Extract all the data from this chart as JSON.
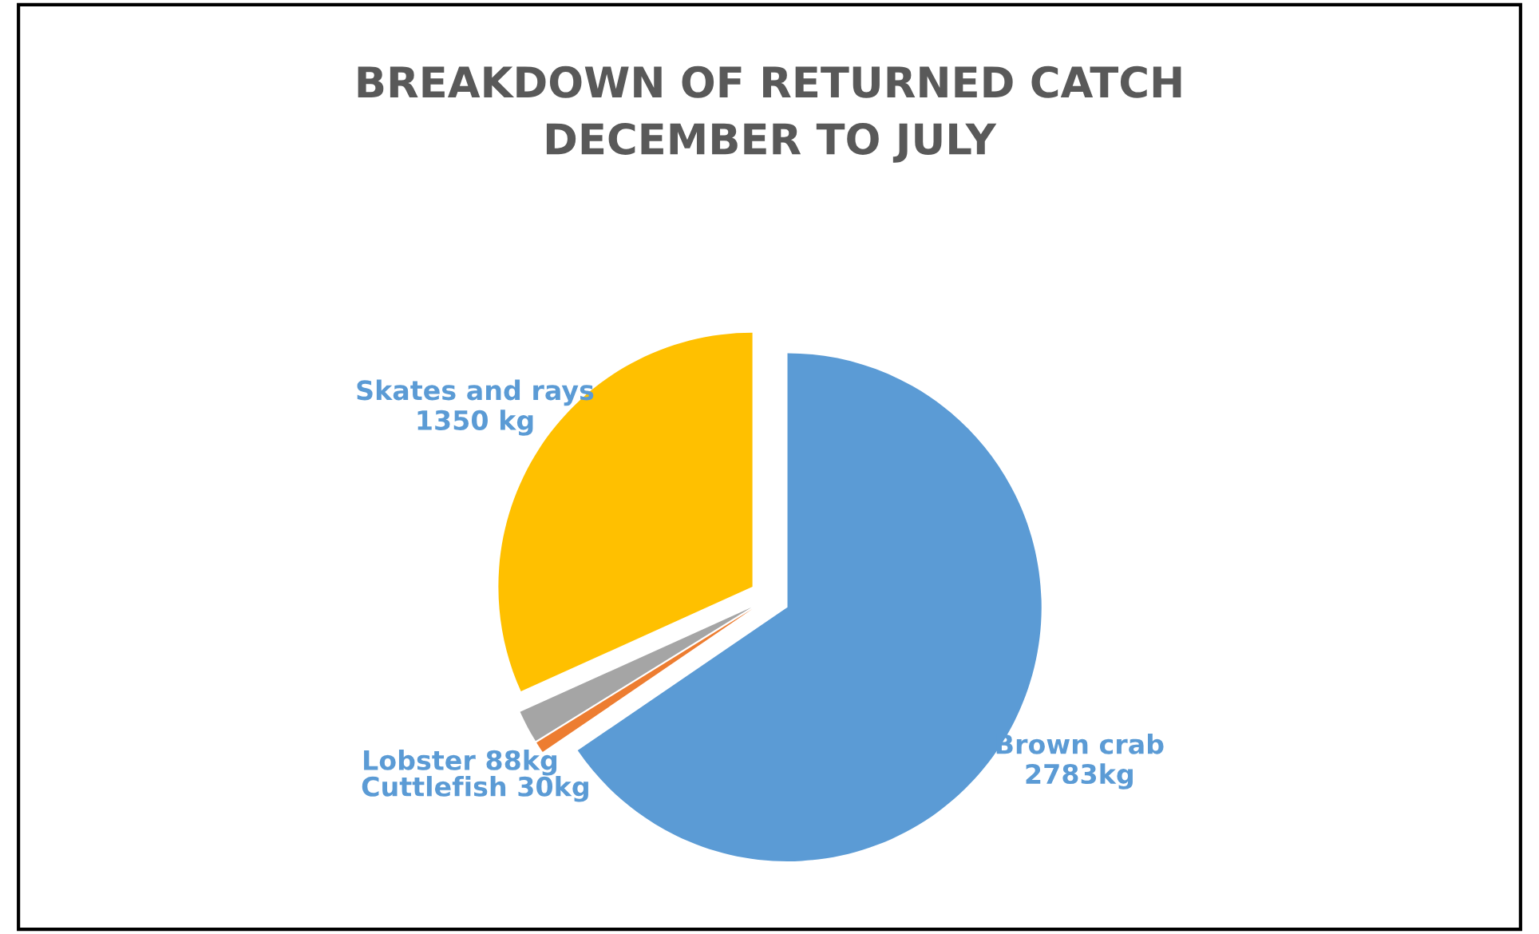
{
  "chart_data": {
    "type": "pie",
    "title": "BREAKDOWN OF RETURNED CATCH\nDECEMBER TO JULY",
    "categories": [
      "Brown crab",
      "Cuttlefish",
      "Lobster",
      "Skates and rays"
    ],
    "values": [
      2783,
      30,
      88,
      1350
    ],
    "value_labels": [
      "2783kg",
      "30kg",
      "88kg",
      "1350 kg"
    ],
    "colors": [
      "#5b9bd5",
      "#ed7d31",
      "#a5a5a5",
      "#ffc000"
    ]
  }
}
